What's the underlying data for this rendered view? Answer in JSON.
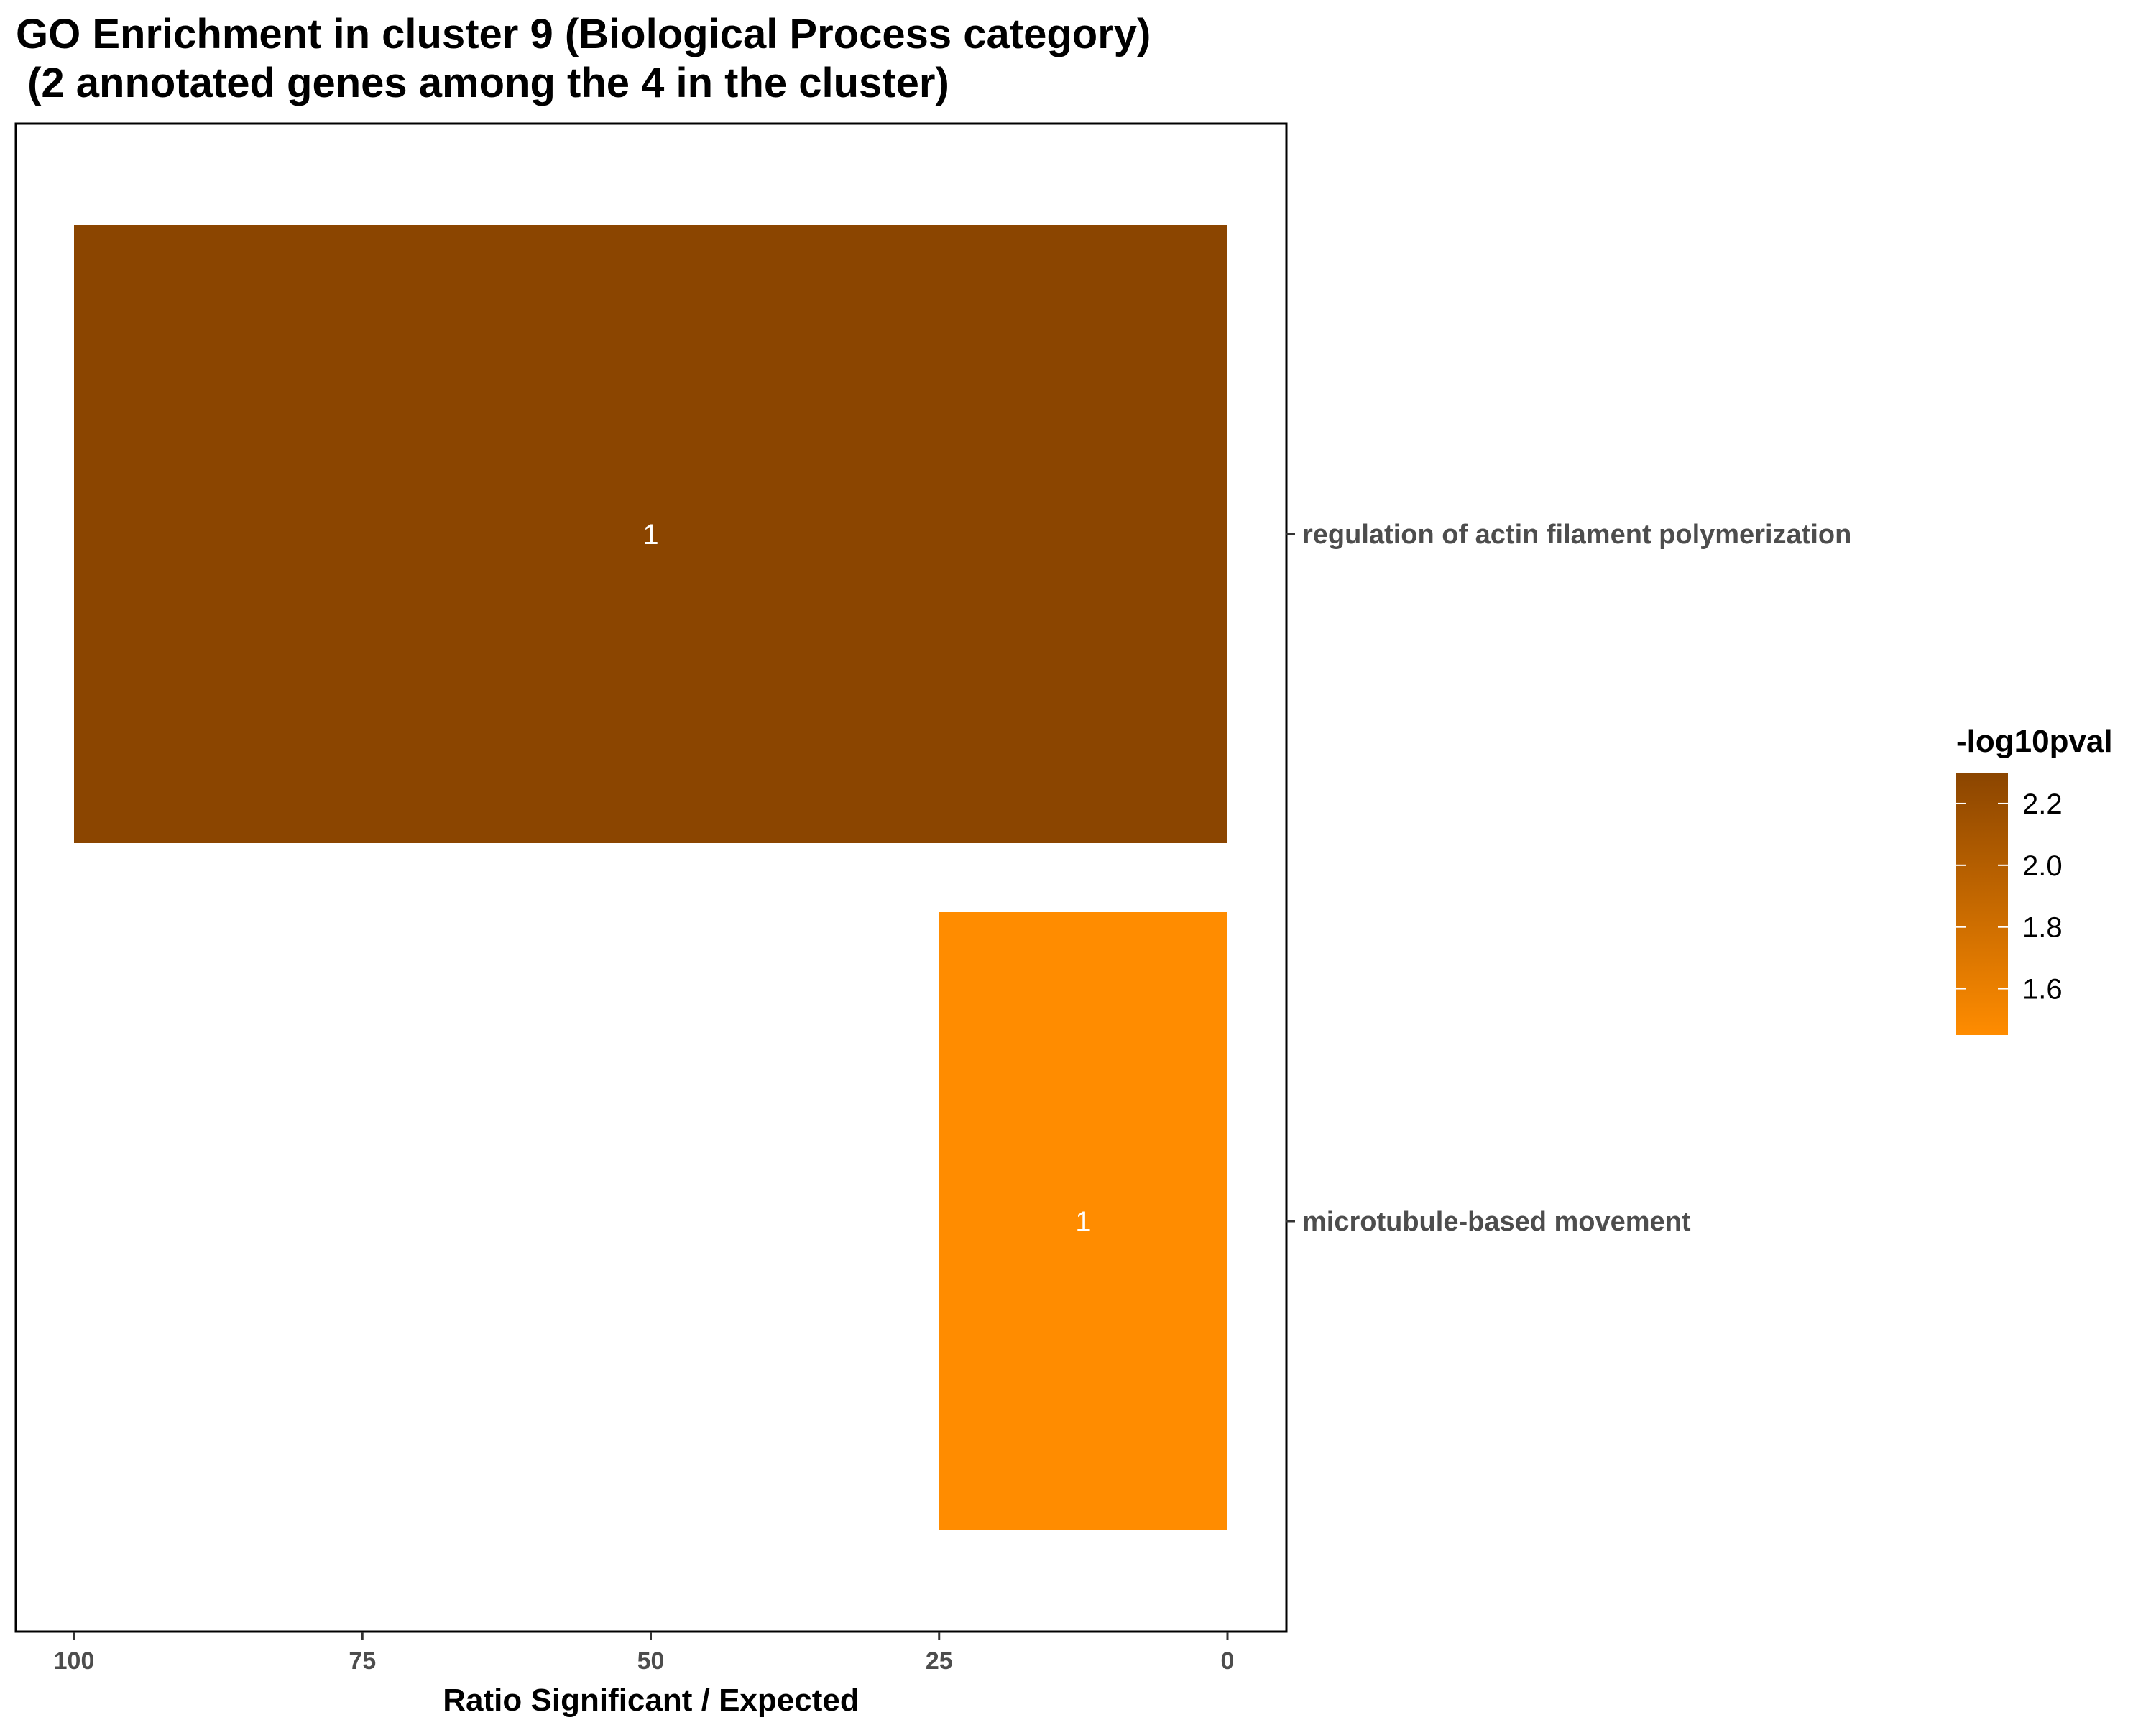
{
  "chart_data": {
    "type": "bar",
    "orientation": "horizontal",
    "title_line1": "GO Enrichment in cluster 9 (Biological Process category)",
    "title_line2": " (2 annotated genes among the 4 in the cluster)",
    "xlabel": "Ratio Significant / Expected",
    "ylabel": "",
    "x_reversed": true,
    "xlim": [
      0,
      105
    ],
    "x_ticks": [
      100,
      75,
      50,
      25,
      0
    ],
    "categories": [
      "regulation of actin filament polymerization",
      "microtubule-based movement"
    ],
    "values": [
      100,
      25
    ],
    "bar_labels": [
      "1",
      "1"
    ],
    "color_values": [
      2.3,
      1.45
    ],
    "legend": {
      "title": "-log10pval",
      "ticks": [
        2.2,
        2.0,
        1.8,
        1.6
      ],
      "tick_labels": [
        "2.2",
        "2.0",
        "1.8",
        "1.6"
      ],
      "range": [
        1.45,
        2.3
      ],
      "color_low": "#ff8c00",
      "color_high": "#8b4500",
      "placement": "right"
    },
    "grid": false
  }
}
